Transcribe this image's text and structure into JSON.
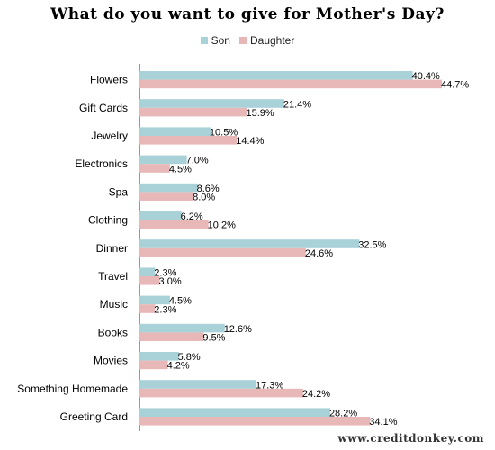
{
  "chart_data": {
    "type": "bar",
    "orientation": "horizontal",
    "title": "What do you want to give for Mother's Day?",
    "legend_position": "top-center",
    "grid": false,
    "xlim": [
      0,
      50
    ],
    "categories": [
      "Flowers",
      "Gift Cards",
      "Jewelry",
      "Electronics",
      "Spa",
      "Clothing",
      "Dinner",
      "Travel",
      "Music",
      "Books",
      "Movies",
      "Something Homemade",
      "Greeting Card"
    ],
    "series": [
      {
        "name": "Son",
        "color": "#a8d1d8",
        "values": [
          40.4,
          21.4,
          10.5,
          7.0,
          8.6,
          6.2,
          32.5,
          2.3,
          4.5,
          12.6,
          5.8,
          17.3,
          28.2
        ],
        "labels": [
          "40.4%",
          "21.4%",
          "10.5%",
          "7.0%",
          "8.6%",
          "6.2%",
          "32.5%",
          "2.3%",
          "4.5%",
          "12.6%",
          "5.8%",
          "17.3%",
          "28.2%"
        ]
      },
      {
        "name": "Daughter",
        "color": "#e8b8b8",
        "values": [
          44.7,
          15.9,
          14.4,
          4.5,
          8.0,
          10.2,
          24.6,
          3.0,
          2.3,
          9.5,
          4.2,
          24.2,
          34.1
        ],
        "labels": [
          "44.7%",
          "15.9%",
          "14.4%",
          "4.5%",
          "8.0%",
          "10.2%",
          "24.6%",
          "3.0%",
          "2.3%",
          "9.5%",
          "4.2%",
          "24.2%",
          "34.1%"
        ]
      }
    ]
  },
  "watermark": "www.creditdonkey.com"
}
